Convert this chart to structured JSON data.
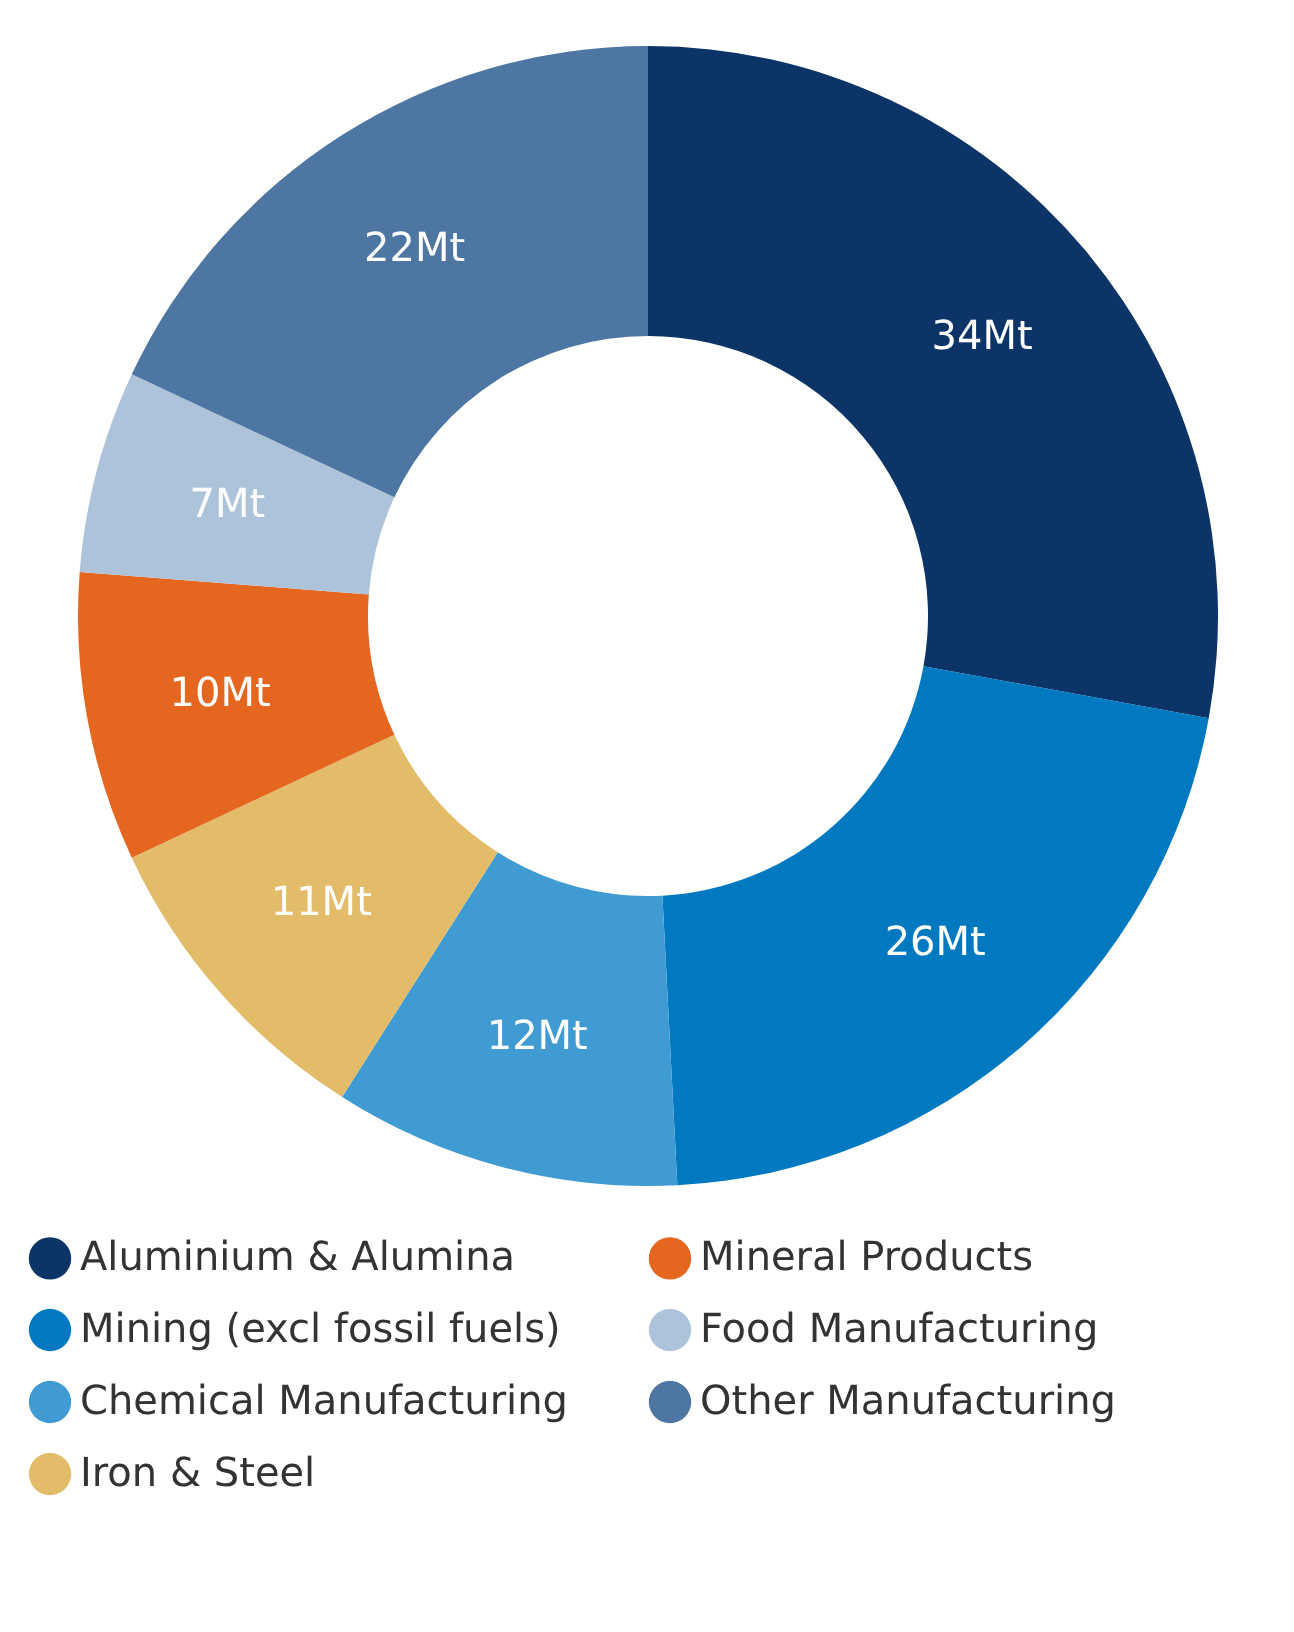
{
  "chart_data": {
    "type": "donut",
    "categories": [
      "Aluminium & Alumina",
      "Mining (excl fossil fuels)",
      "Chemical Manufacturing",
      "Iron & Steel",
      "Mineral Products",
      "Food Manufacturing",
      "Other Manufacturing"
    ],
    "values": [
      34,
      26,
      12,
      11,
      10,
      7,
      22
    ],
    "value_labels": [
      "34Mt",
      "26Mt",
      "12Mt",
      "11Mt",
      "10Mt",
      "7Mt",
      "22Mt"
    ],
    "colors": [
      "#0c3466",
      "#0079c1",
      "#419bd3",
      "#e3bc6a",
      "#e5661f",
      "#adc3d9",
      "#4e76a3"
    ],
    "legend": "bottom"
  }
}
